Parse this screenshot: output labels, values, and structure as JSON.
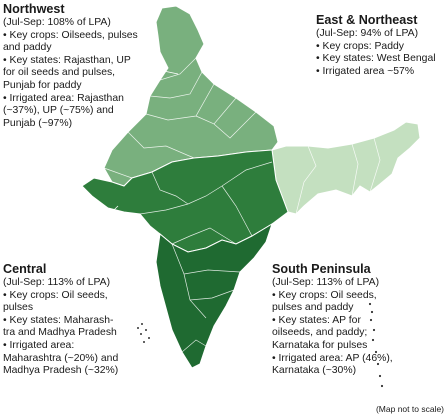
{
  "regions": {
    "northwest": {
      "name": "Northwest",
      "lines": [
        "(Jul-Sep: 108% of LPA)",
        "• Key crops: Oilseeds, pulses",
        "and paddy",
        "• Key states: Rajasthan, UP",
        "for oil seeds and pulses,",
        "Punjab for paddy",
        "• Irrigated area: Rajasthan",
        "(~37%), UP (~75%) and",
        "Punjab (~97%)"
      ],
      "color": "#79b07e"
    },
    "east_northeast": {
      "name": "East & Northeast",
      "lines": [
        "(Jul-Sep: 94% of LPA)",
        "• Key crops: Paddy",
        "• Key states: West Bengal",
        "• Irrigated area ~57%"
      ],
      "color": "#c4e0c0"
    },
    "central": {
      "name": "Central",
      "lines": [
        "(Jul-Sep: 113% of LPA)",
        "• Key crops: Oil seeds,",
        "pulses",
        "• Key states: Maharash-",
        "tra and Madhya Pradesh",
        "• Irrigated area:",
        "Maharashtra (~20%) and",
        "Madhya Pradesh (~32%)"
      ],
      "color": "#2e7d3c"
    },
    "south_peninsula": {
      "name": "South Peninsula",
      "lines": [
        "(Jul-Sep: 113% of LPA)",
        "• Key crops: Oil seeds,",
        "pulses and paddy",
        "• Key states: AP for",
        "oilseeds, and paddy;",
        "Karnataka for pulses",
        "• Irrigated area: AP (46%),",
        "Karnataka (~30%)"
      ],
      "color": "#1f6a31"
    }
  },
  "footnote": "(Map not to scale)",
  "colors": {
    "border": "#ffffff",
    "leader_line": "#ffffff",
    "islands": "#333333"
  }
}
